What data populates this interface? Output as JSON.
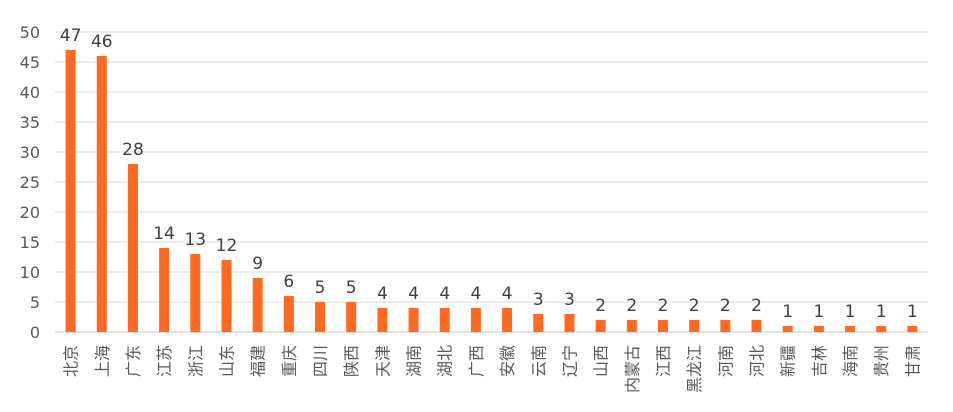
{
  "chart_data": {
    "type": "bar",
    "title": "",
    "xlabel": "",
    "ylabel": "",
    "ylim": [
      0,
      50
    ],
    "yticks": [
      0,
      5,
      10,
      15,
      20,
      25,
      30,
      35,
      40,
      45,
      50
    ],
    "grid": true,
    "bar_color": "#FF6A23",
    "grid_color": "#D9D9D9",
    "data_labels": true,
    "categories": [
      "北京",
      "上海",
      "广东",
      "江苏",
      "浙江",
      "山东",
      "福建",
      "重庆",
      "四川",
      "陕西",
      "天津",
      "湖南",
      "湖北",
      "广西",
      "安徽",
      "云南",
      "辽宁",
      "山西",
      "内蒙古",
      "江西",
      "黑龙江",
      "河南",
      "河北",
      "新疆",
      "吉林",
      "海南",
      "贵州",
      "甘肃"
    ],
    "values": [
      47,
      46,
      28,
      14,
      13,
      12,
      9,
      6,
      5,
      5,
      4,
      4,
      4,
      4,
      4,
      3,
      3,
      2,
      2,
      2,
      2,
      2,
      2,
      1,
      1,
      1,
      1,
      1
    ]
  }
}
